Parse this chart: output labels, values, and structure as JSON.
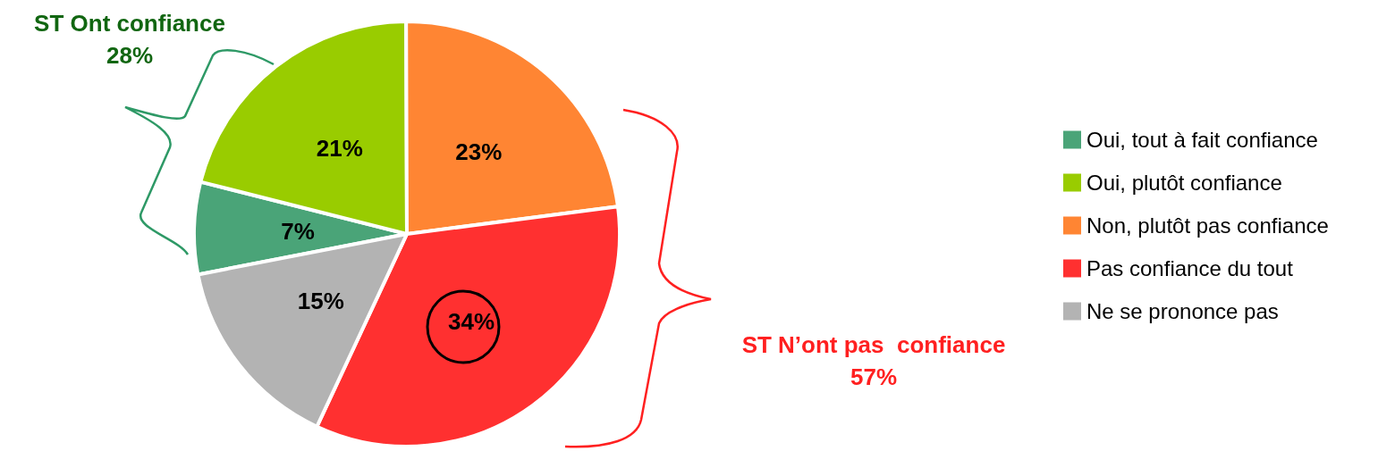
{
  "chart_data": {
    "type": "pie",
    "categories": [
      "Oui, tout à fait confiance",
      "Oui, plutôt confiance",
      "Non, plutôt pas confiance",
      "Pas confiance du tout",
      "Ne se prononce pas"
    ],
    "values": [
      7,
      21,
      23,
      34,
      15
    ],
    "colors": [
      "#4aa478",
      "#99cc00",
      "#ff8533",
      "#ff3030",
      "#b3b3b3"
    ],
    "value_labels": [
      "7%",
      "21%",
      "23%",
      "34%",
      "15%"
    ],
    "legend": "right",
    "annotations": [
      "ST Ont confiance\n28%",
      "ST N’ont pas  confiance\n57%"
    ]
  }
}
